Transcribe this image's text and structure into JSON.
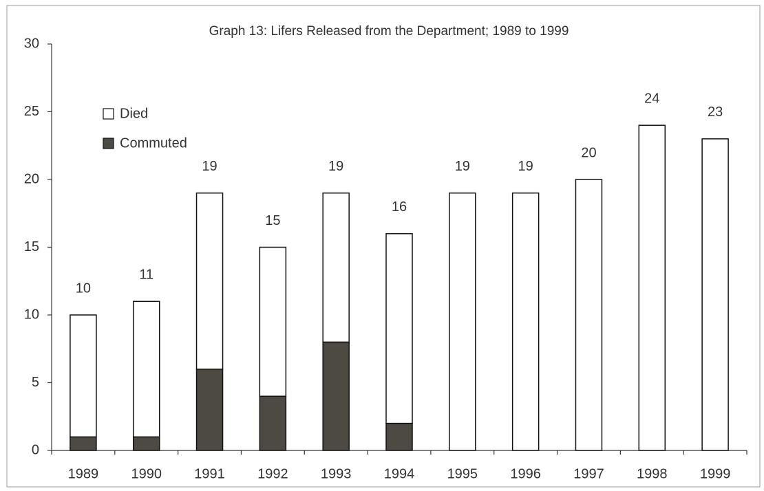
{
  "chart_data": {
    "type": "stacked_bar",
    "title": "Graph 13: Lifers Released from the Department; 1989 to 1999",
    "categories": [
      "1989",
      "1990",
      "1991",
      "1992",
      "1993",
      "1994",
      "1995",
      "1996",
      "1997",
      "1998",
      "1999"
    ],
    "series": [
      {
        "name": "Commuted",
        "color": "#4d4a44",
        "values": [
          1,
          1,
          6,
          4,
          8,
          2,
          0,
          0,
          0,
          0,
          0
        ]
      },
      {
        "name": "Died",
        "color": "#ffffff",
        "values": [
          9,
          10,
          13,
          11,
          11,
          14,
          19,
          19,
          20,
          24,
          23
        ]
      }
    ],
    "total_labels": [
      "10",
      "11",
      "19",
      "15",
      "19",
      "16",
      "19",
      "19",
      "20",
      "24",
      "23"
    ],
    "ylim": [
      0,
      30
    ],
    "yticks": [
      0,
      5,
      10,
      15,
      20,
      25,
      30
    ],
    "grid": false,
    "legend": "upper left"
  }
}
